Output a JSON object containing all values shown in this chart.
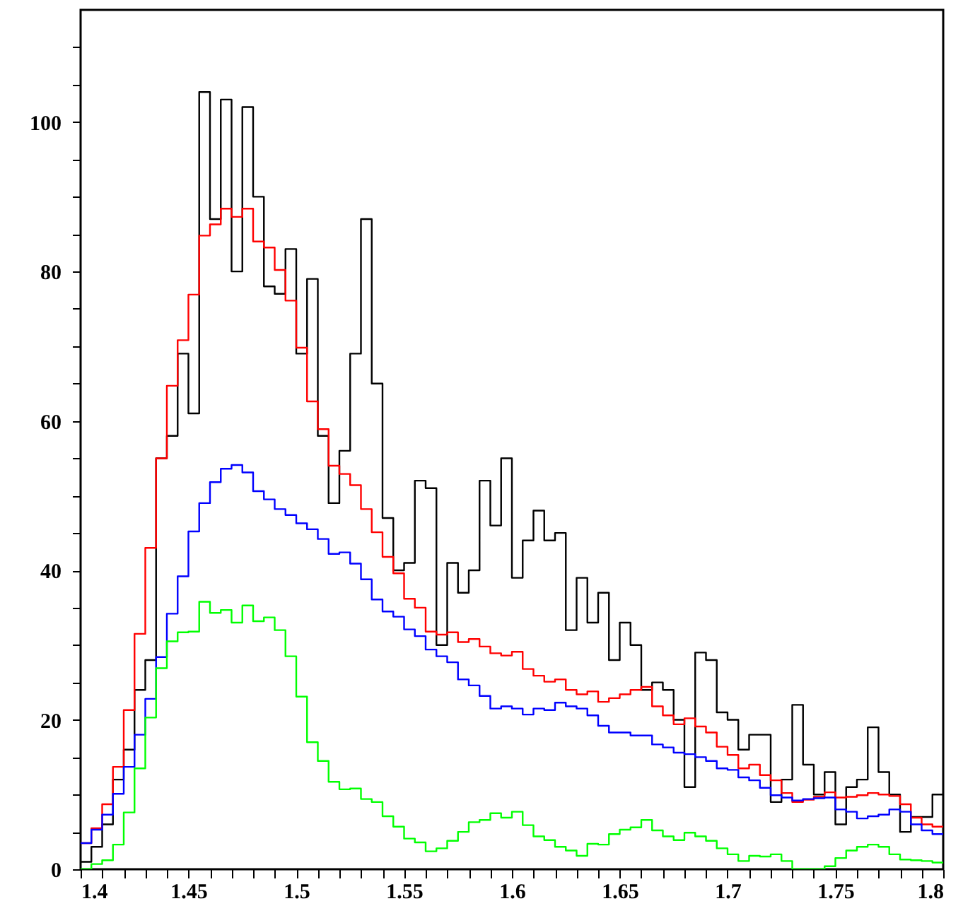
{
  "chart_data": {
    "type": "histogram",
    "bins": [
      1.4,
      1.405,
      1.41,
      1.415,
      1.42,
      1.425,
      1.43,
      1.435,
      1.44,
      1.445,
      1.45,
      1.455,
      1.46,
      1.465,
      1.47,
      1.475,
      1.48,
      1.485,
      1.49,
      1.495,
      1.5,
      1.505,
      1.51,
      1.515,
      1.52,
      1.525,
      1.53,
      1.535,
      1.54,
      1.545,
      1.55,
      1.555,
      1.56,
      1.565,
      1.57,
      1.575,
      1.58,
      1.585,
      1.59,
      1.595,
      1.6,
      1.605,
      1.61,
      1.615,
      1.62,
      1.625,
      1.63,
      1.635,
      1.64,
      1.645,
      1.65,
      1.655,
      1.66,
      1.665,
      1.67,
      1.675,
      1.68,
      1.685,
      1.69,
      1.695,
      1.7,
      1.705,
      1.71,
      1.715,
      1.72,
      1.725,
      1.73,
      1.735,
      1.74,
      1.745,
      1.75,
      1.755,
      1.76,
      1.765,
      1.77,
      1.775,
      1.78,
      1.785,
      1.79,
      1.795,
      1.8
    ],
    "series": [
      {
        "color": "#000000",
        "values": [
          1,
          3,
          6,
          12,
          16,
          24,
          28,
          55,
          58,
          69,
          61,
          104,
          87,
          103,
          80,
          102,
          90,
          78,
          77,
          83,
          69,
          79,
          58,
          49,
          56,
          69,
          87,
          65,
          47,
          40,
          41,
          52,
          51,
          30,
          41,
          37,
          40,
          52,
          46,
          55,
          39,
          44,
          48,
          44,
          45,
          32,
          39,
          33,
          37,
          28,
          33,
          30,
          24,
          25,
          24,
          20,
          11,
          29,
          28,
          21,
          20,
          16,
          18,
          18,
          9,
          12,
          22,
          14,
          10,
          13,
          6,
          11,
          12,
          19,
          13,
          10,
          5,
          7,
          7,
          10
        ]
      },
      {
        "color": "#ff0000",
        "values": [
          3.5,
          5.5,
          8.7,
          13.7,
          21.3,
          31.5,
          43,
          55,
          64.7,
          70.8,
          76.9,
          84.8,
          86.3,
          88.4,
          87.3,
          88.4,
          84,
          83.2,
          80.2,
          76.1,
          69.8,
          62.6,
          58.9,
          54,
          52.9,
          51.4,
          48.2,
          45.1,
          41.8,
          39.6,
          36.2,
          35,
          31.8,
          31.4,
          31.7,
          30.4,
          30.8,
          29.8,
          28.9,
          28.6,
          29.1,
          26.8,
          25.9,
          25.1,
          25.4,
          24,
          23.4,
          23.8,
          22.4,
          22.9,
          23.4,
          24,
          24.4,
          21.8,
          20.6,
          19.4,
          20.2,
          19.1,
          18.3,
          16.4,
          15.3,
          13.5,
          14,
          12.6,
          11.9,
          10.2,
          9,
          9.3,
          9.7,
          10.3,
          9.6,
          9.7,
          9.9,
          10.2,
          10,
          9.8,
          8.7,
          6.9,
          6,
          5.7
        ]
      },
      {
        "color": "#0000ff",
        "values": [
          3.5,
          5.3,
          7.3,
          10.1,
          13.7,
          18,
          22.8,
          28.4,
          34.2,
          39.2,
          45.2,
          49,
          51.8,
          53.6,
          54.1,
          53.1,
          50.6,
          49.5,
          48.2,
          47.4,
          46.3,
          45.5,
          44.2,
          42.2,
          42.4,
          40.9,
          38.8,
          36.1,
          34.5,
          33.8,
          32.1,
          31.2,
          29.4,
          28.5,
          27.7,
          25.4,
          24.6,
          23.2,
          21.5,
          21.8,
          21.5,
          20.7,
          21.5,
          21.3,
          22.3,
          21.8,
          21.5,
          20.6,
          19.2,
          18.3,
          18.3,
          17.9,
          17.9,
          16.7,
          16.3,
          15.6,
          15.4,
          15,
          14.5,
          13.5,
          13.3,
          12.3,
          11.9,
          10.9,
          9.9,
          9.6,
          9.2,
          9.4,
          9.5,
          9.6,
          8,
          7.7,
          6.8,
          7.1,
          7.3,
          8,
          7.7,
          6,
          5.2,
          4.7
        ]
      },
      {
        "color": "#00ff00",
        "values": [
          0,
          0.7,
          1.2,
          3.3,
          7.6,
          13.5,
          20.3,
          26.9,
          30.5,
          31.7,
          31.8,
          35.8,
          34.3,
          34.7,
          33,
          35.3,
          33.2,
          33.7,
          32,
          28.5,
          23.1,
          17,
          14.5,
          11.7,
          10.7,
          10.8,
          9.4,
          9,
          7.1,
          5.7,
          4.1,
          3.6,
          2.4,
          2.8,
          3.8,
          5,
          6.3,
          6.6,
          7.5,
          6.9,
          7.7,
          5.9,
          4.4,
          3.9,
          3,
          2.5,
          1.8,
          3.4,
          3.3,
          4.7,
          5.3,
          5.6,
          6.6,
          5.2,
          4.4,
          3.9,
          4.9,
          4.4,
          3.8,
          2.8,
          2,
          1.1,
          1.8,
          1.7,
          2,
          1.1,
          0,
          0,
          0,
          0.4,
          1.5,
          2.5,
          3,
          3.3,
          3,
          2,
          1.3,
          1.2,
          1.1,
          0.9
        ]
      }
    ],
    "xlim": [
      1.4,
      1.8
    ],
    "ylim": [
      0,
      115
    ],
    "xticks": [
      1.4,
      {
        "value": 1.41,
        "label": null
      },
      {
        "value": 1.42,
        "label": null
      },
      {
        "value": 1.43,
        "label": null
      },
      {
        "value": 1.44,
        "label": null
      },
      1.45,
      {
        "value": 1.46,
        "label": null
      },
      {
        "value": 1.47,
        "label": null
      },
      {
        "value": 1.48,
        "label": null
      },
      {
        "value": 1.49,
        "label": null
      },
      1.5,
      {
        "value": 1.51,
        "label": null
      },
      {
        "value": 1.52,
        "label": null
      },
      {
        "value": 1.53,
        "label": null
      },
      {
        "value": 1.54,
        "label": null
      },
      1.55,
      {
        "value": 1.56,
        "label": null
      },
      {
        "value": 1.57,
        "label": null
      },
      {
        "value": 1.58,
        "label": null
      },
      {
        "value": 1.59,
        "label": null
      },
      1.6,
      {
        "value": 1.61,
        "label": null
      },
      {
        "value": 1.62,
        "label": null
      },
      {
        "value": 1.63,
        "label": null
      },
      {
        "value": 1.64,
        "label": null
      },
      1.65,
      {
        "value": 1.66,
        "label": null
      },
      {
        "value": 1.67,
        "label": null
      },
      {
        "value": 1.68,
        "label": null
      },
      {
        "value": 1.69,
        "label": null
      },
      1.7,
      {
        "value": 1.71,
        "label": null
      },
      {
        "value": 1.72,
        "label": null
      },
      {
        "value": 1.73,
        "label": null
      },
      {
        "value": 1.74,
        "label": null
      },
      1.75,
      {
        "value": 1.76,
        "label": null
      },
      {
        "value": 1.77,
        "label": null
      },
      {
        "value": 1.78,
        "label": null
      },
      {
        "value": 1.79,
        "label": null
      },
      1.8
    ],
    "yticks": [
      0,
      {
        "value": 5,
        "label": null
      },
      {
        "value": 10,
        "label": null
      },
      {
        "value": 15,
        "label": null
      },
      20,
      {
        "value": 25,
        "label": null
      },
      {
        "value": 30,
        "label": null
      },
      {
        "value": 35,
        "label": null
      },
      40,
      {
        "value": 45,
        "label": null
      },
      {
        "value": 50,
        "label": null
      },
      {
        "value": 55,
        "label": null
      },
      60,
      {
        "value": 65,
        "label": null
      },
      {
        "value": 70,
        "label": null
      },
      {
        "value": 75,
        "label": null
      },
      80,
      {
        "value": 85,
        "label": null
      },
      {
        "value": 90,
        "label": null
      },
      {
        "value": 95,
        "label": null
      },
      100,
      {
        "value": 105,
        "label": null
      },
      {
        "value": 110,
        "label": null
      }
    ],
    "grid": false
  }
}
